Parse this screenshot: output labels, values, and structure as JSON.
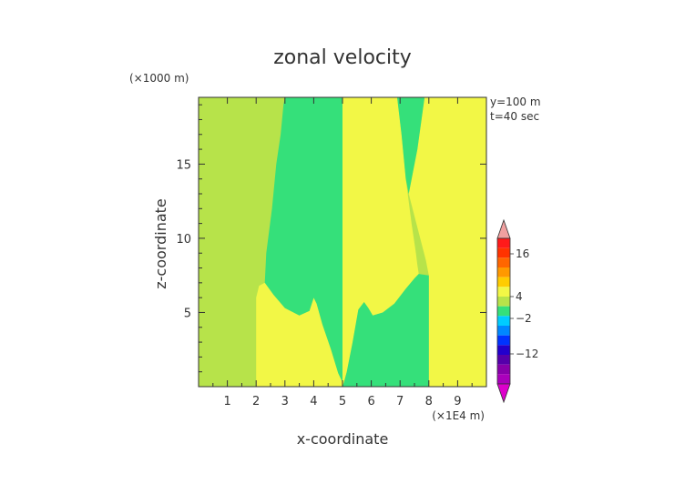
{
  "chart_data": {
    "type": "heatmap",
    "title": "zonal velocity",
    "xlabel": "x-coordinate",
    "ylabel": "z-coordinate",
    "x_unit": "(×1E4 m)",
    "y_unit": "(×1000 m)",
    "annotations": [
      "y=100 m",
      "t=40 sec"
    ],
    "xlim": [
      0,
      10
    ],
    "ylim": [
      0,
      19.5
    ],
    "x_ticks": [
      1,
      2,
      3,
      4,
      5,
      6,
      7,
      8,
      9
    ],
    "x_tick_labels": [
      "1",
      "2",
      "3",
      "4",
      "5",
      "6",
      "7",
      "8",
      "9"
    ],
    "y_ticks": [
      5,
      10,
      15
    ],
    "y_tick_labels": [
      "5",
      "10",
      "15"
    ],
    "colorbar_tick_labels": [
      "16",
      "4",
      "−2",
      "−12"
    ],
    "regions": [
      {
        "level": "yellow-green",
        "color": "#b7e34a",
        "polygon": [
          [
            0,
            0
          ],
          [
            10,
            0
          ],
          [
            10,
            19.5
          ],
          [
            0,
            19.5
          ]
        ]
      },
      {
        "level": "yellow",
        "color": "#f2f746",
        "polygon": [
          [
            2,
            0
          ],
          [
            2,
            6
          ],
          [
            2.1,
            6.8
          ],
          [
            2.3,
            7
          ],
          [
            2.6,
            6.2
          ],
          [
            3,
            5.3
          ],
          [
            3.5,
            4.8
          ],
          [
            3.85,
            5.1
          ],
          [
            4,
            6.0
          ],
          [
            4.1,
            5.6
          ],
          [
            4.3,
            4.2
          ],
          [
            4.6,
            2.5
          ],
          [
            4.85,
            0.9
          ],
          [
            5,
            0.3
          ],
          [
            5,
            0
          ]
        ]
      },
      {
        "level": "yellow",
        "color": "#f2f746",
        "polygon": [
          [
            5,
            0
          ],
          [
            5,
            19.5
          ],
          [
            6.9,
            19.5
          ],
          [
            7.05,
            17
          ],
          [
            7.2,
            14
          ],
          [
            7.4,
            11
          ],
          [
            7.55,
            9
          ],
          [
            7.6,
            8.2
          ],
          [
            7.65,
            7.6
          ],
          [
            7.5,
            7.3
          ],
          [
            7.2,
            6.6
          ],
          [
            6.8,
            5.6
          ],
          [
            6.4,
            5.0
          ],
          [
            6.05,
            4.8
          ],
          [
            5.9,
            5.3
          ],
          [
            5.75,
            5.7
          ],
          [
            5.55,
            5.2
          ],
          [
            5.35,
            3.0
          ],
          [
            5.15,
            1.0
          ],
          [
            5.05,
            0.3
          ]
        ]
      },
      {
        "level": "yellow",
        "color": "#f2f746",
        "polygon": [
          [
            8,
            0
          ],
          [
            10,
            0
          ],
          [
            10,
            19.5
          ],
          [
            7.85,
            19.5
          ],
          [
            7.6,
            16
          ],
          [
            7.3,
            13
          ],
          [
            7.9,
            8.5
          ],
          [
            8.0,
            7.5
          ]
        ]
      },
      {
        "level": "green",
        "color": "#35e07a",
        "polygon": [
          [
            3,
            19.5
          ],
          [
            5,
            19.5
          ],
          [
            5,
            0.3
          ],
          [
            4.85,
            0.9
          ],
          [
            4.6,
            2.5
          ],
          [
            4.3,
            4.2
          ],
          [
            4.1,
            5.6
          ],
          [
            4,
            6.0
          ],
          [
            3.85,
            5.1
          ],
          [
            3.5,
            4.8
          ],
          [
            3,
            5.3
          ],
          [
            2.6,
            6.2
          ],
          [
            2.3,
            7.0
          ],
          [
            2.35,
            9
          ],
          [
            2.55,
            12
          ],
          [
            2.7,
            15
          ],
          [
            2.85,
            17
          ],
          [
            2.95,
            19
          ]
        ]
      },
      {
        "level": "green",
        "color": "#35e07a",
        "polygon": [
          [
            5,
            0
          ],
          [
            5.05,
            0.3
          ],
          [
            5.15,
            1.0
          ],
          [
            5.35,
            3.0
          ],
          [
            5.55,
            5.2
          ],
          [
            5.75,
            5.7
          ],
          [
            5.9,
            5.3
          ],
          [
            6.05,
            4.8
          ],
          [
            6.4,
            5.0
          ],
          [
            6.8,
            5.6
          ],
          [
            7.2,
            6.6
          ],
          [
            7.5,
            7.3
          ],
          [
            7.65,
            7.6
          ],
          [
            8,
            7.5
          ],
          [
            8,
            0
          ]
        ]
      },
      {
        "level": "green",
        "color": "#35e07a",
        "polygon": [
          [
            7.3,
            13
          ],
          [
            7.6,
            16
          ],
          [
            7.85,
            19.5
          ],
          [
            6.9,
            19.5
          ],
          [
            7.05,
            17
          ],
          [
            7.2,
            14
          ]
        ]
      }
    ],
    "colorbar_levels": [
      {
        "color": "#ff1a1a"
      },
      {
        "color": "#ff3300"
      },
      {
        "color": "#ff6600"
      },
      {
        "color": "#ff9900"
      },
      {
        "color": "#ffcc00"
      },
      {
        "color": "#f2f746"
      },
      {
        "color": "#b7e34a"
      },
      {
        "color": "#35e07a"
      },
      {
        "color": "#00ccff"
      },
      {
        "color": "#0088ff"
      },
      {
        "color": "#0033ff"
      },
      {
        "color": "#2200cc"
      },
      {
        "color": "#5500aa"
      },
      {
        "color": "#8800aa"
      },
      {
        "color": "#aa00bb"
      }
    ],
    "colorbar_top_color": "#f0a0a0",
    "colorbar_bottom_color": "#dd00cc"
  }
}
